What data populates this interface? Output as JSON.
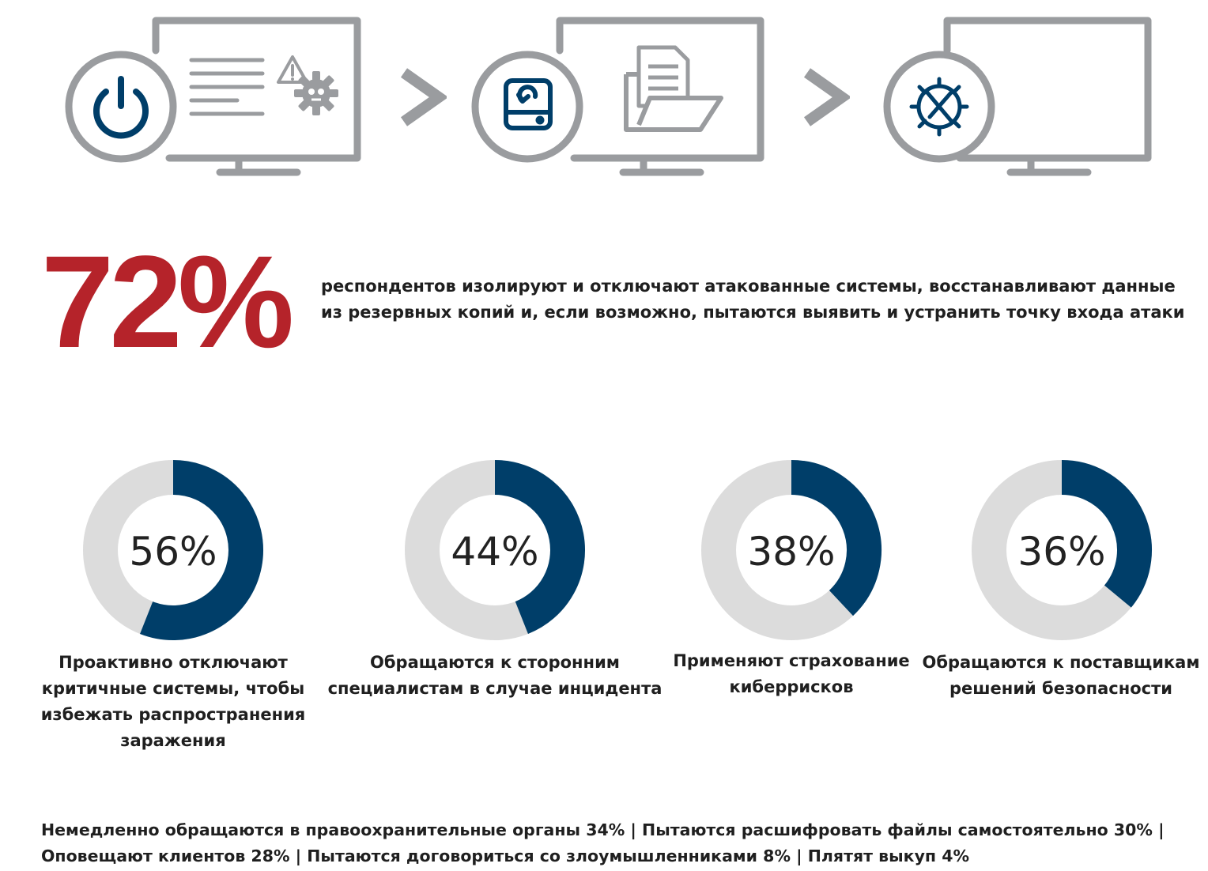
{
  "colors": {
    "accent_red": "#b5232a",
    "navy": "#003e69",
    "ring_gray": "#dcdcdc",
    "icon_gray": "#9a9c9f"
  },
  "steps": [
    {
      "icon": "power-icon",
      "screen_icons": [
        "text-lines-icon",
        "warning-icon",
        "virus-gear-icon"
      ]
    },
    {
      "icon": "disk-restore-icon",
      "screen_icons": [
        "document-icon",
        "folder-icon"
      ]
    },
    {
      "icon": "wrench-gear-icon",
      "screen_icons": []
    }
  ],
  "separators": [
    ">",
    ">"
  ],
  "headline": {
    "value": "72%",
    "text": "респондентов изолируют и отключают атакованные системы, восстанавливают данные из резервных копий и, если возможно, пытаются выявить и устранить точку входа атаки"
  },
  "chart_data": {
    "type": "pie",
    "style": "donut",
    "items": [
      {
        "value": 56,
        "label": "56%",
        "caption": "Проактивно отключают критичные системы, чтобы избежать распространения заражения"
      },
      {
        "value": 44,
        "label": "44%",
        "caption": "Обращаются к сторонним специалистам в случае инцидента"
      },
      {
        "value": 38,
        "label": "38%",
        "caption": "Применяют страхование киберрисков"
      },
      {
        "value": 36,
        "label": "36%",
        "caption": "Обращаются к поставщикам решений безопасности"
      }
    ]
  },
  "footer": {
    "line1": "Немедленно обращаются в правоохранительные органы 34% | Пытаются расшифровать файлы самостоятельно 30% |",
    "line2": "Оповещают клиентов 28% | Пытаются договориться со злоумышленниками 8% | Плятят выкуп 4%"
  }
}
